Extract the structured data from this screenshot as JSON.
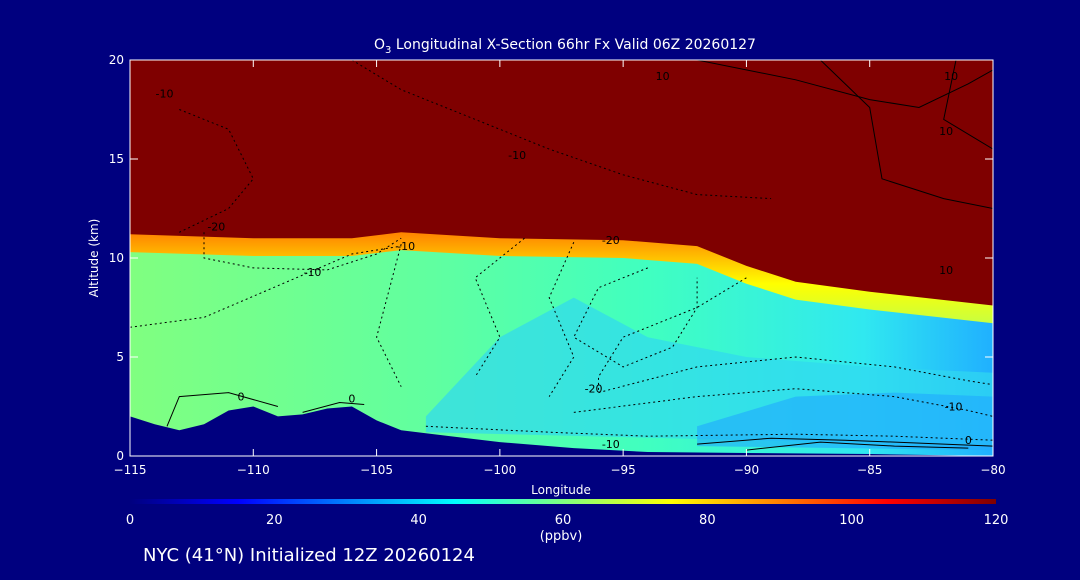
{
  "chart_data": {
    "type": "heatmap",
    "title_main": "O",
    "title_sub": "3",
    "title_rest": " Longitudinal X-Section 66hr  Fx Valid 06Z 20260127",
    "xlabel": "Longitude",
    "ylabel": "Altitude (km)",
    "xlim": [
      -115,
      -80
    ],
    "ylim": [
      0,
      20
    ],
    "x_ticks": [
      -115,
      -110,
      -105,
      -100,
      -95,
      -90,
      -85,
      -80
    ],
    "x_tick_labels": [
      "−115",
      "−110",
      "−105",
      "−100",
      "−95",
      "−90",
      "−85",
      "−80"
    ],
    "y_ticks": [
      0,
      5,
      10,
      15,
      20
    ],
    "y_tick_labels": [
      "0",
      "5",
      "10",
      "15",
      "20"
    ],
    "colorbar": {
      "range": [
        0,
        120
      ],
      "ticks": [
        0,
        20,
        40,
        60,
        80,
        100,
        120
      ],
      "tick_labels": [
        "0",
        "20",
        "40",
        "60",
        "80",
        "100",
        "120"
      ],
      "unit": "(ppbv)",
      "colors": [
        "#00007f",
        "#0000ff",
        "#0080ff",
        "#00ffff",
        "#80ff80",
        "#ffff00",
        "#ff8000",
        "#ff0000",
        "#7f0000"
      ]
    },
    "tropopause_km": [
      [
        -115,
        11.2
      ],
      [
        -110,
        11.0
      ],
      [
        -106,
        11.0
      ],
      [
        -104,
        11.3
      ],
      [
        -100,
        11.0
      ],
      [
        -95,
        10.9
      ],
      [
        -92,
        10.6
      ],
      [
        -90,
        9.6
      ],
      [
        -88,
        8.8
      ],
      [
        -85,
        8.3
      ],
      [
        -80,
        7.6
      ]
    ],
    "terrain_km": [
      [
        -115,
        2.0
      ],
      [
        -114,
        1.6
      ],
      [
        -113,
        1.3
      ],
      [
        -112,
        1.6
      ],
      [
        -111,
        2.3
      ],
      [
        -110,
        2.5
      ],
      [
        -109,
        2.0
      ],
      [
        -108,
        2.1
      ],
      [
        -107,
        2.4
      ],
      [
        -106,
        2.5
      ],
      [
        -105,
        1.8
      ],
      [
        -104,
        1.3
      ],
      [
        -102,
        1.0
      ],
      [
        -100,
        0.7
      ],
      [
        -97,
        0.4
      ],
      [
        -94,
        0.2
      ],
      [
        -90,
        0.15
      ],
      [
        -85,
        0.1
      ],
      [
        -80,
        0.0
      ]
    ],
    "contour_labels": [
      {
        "text": "-10",
        "lon": -113.6,
        "alt": 18.1
      },
      {
        "text": "-10",
        "lon": -99.3,
        "alt": 15.0
      },
      {
        "text": "10",
        "lon": -93.4,
        "alt": 19.0
      },
      {
        "text": "10",
        "lon": -81.7,
        "alt": 19.0
      },
      {
        "text": "10",
        "lon": -81.9,
        "alt": 16.2
      },
      {
        "text": "-20",
        "lon": -111.5,
        "alt": 11.4
      },
      {
        "text": "-10",
        "lon": -103.8,
        "alt": 10.4
      },
      {
        "text": "-20",
        "lon": -95.5,
        "alt": 10.7
      },
      {
        "text": "10",
        "lon": -81.9,
        "alt": 9.2
      },
      {
        "text": "-10",
        "lon": -107.6,
        "alt": 9.1
      },
      {
        "text": "-20",
        "lon": -96.2,
        "alt": 3.2
      },
      {
        "text": "-10",
        "lon": -81.6,
        "alt": 2.3
      },
      {
        "text": "0",
        "lon": -110.5,
        "alt": 2.8
      },
      {
        "text": "0",
        "lon": -106.0,
        "alt": 2.7
      },
      {
        "text": "-10",
        "lon": -95.5,
        "alt": 0.4
      },
      {
        "text": "0",
        "lon": -81.0,
        "alt": 0.6
      }
    ]
  },
  "footer": "NYC (41°N) Initialized 12Z 20260124"
}
